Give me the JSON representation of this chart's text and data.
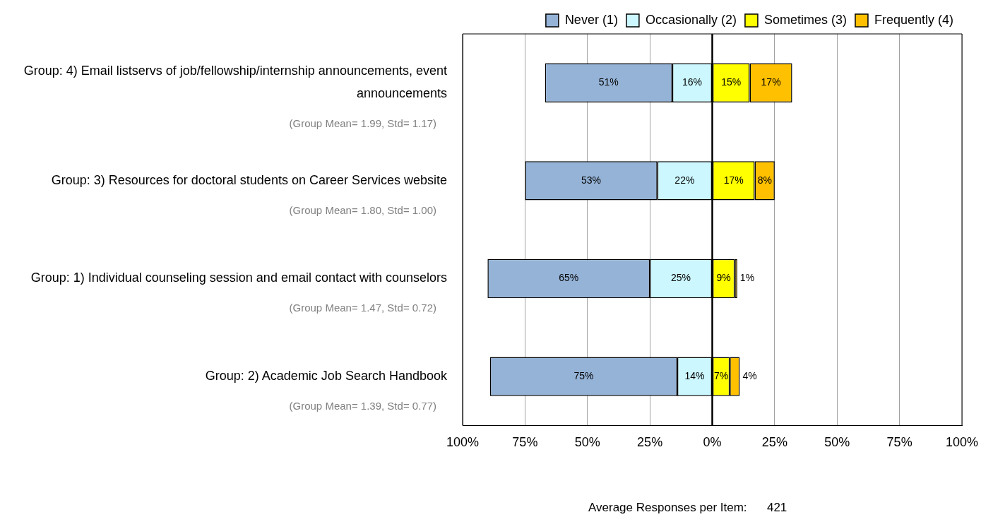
{
  "chart_data": {
    "type": "bar",
    "orientation": "horizontal",
    "categories": [
      "Group: 4) Email listservs of job/fellowship/internship announcements, event announcements",
      "Group: 3) Resources for doctoral students on Career Services website",
      "Group: 1) Individual counseling session and email contact with counselors",
      "Group: 2) Academic Job Search Handbook"
    ],
    "series": [
      {
        "name": "Never (1)",
        "color": "#95b3d7",
        "base": [
          -67,
          -75,
          -90,
          -89
        ],
        "values": [
          51,
          53,
          65,
          75
        ],
        "value_labels": [
          "51%",
          "53%",
          "65%",
          "75%"
        ]
      },
      {
        "name": "Occasionally (2)",
        "color": "#ccf7ff",
        "base": [
          -16,
          -22,
          -25,
          -14
        ],
        "values": [
          16,
          22,
          25,
          14
        ],
        "value_labels": [
          "16%",
          "22%",
          "25%",
          "14%"
        ]
      },
      {
        "name": "Sometimes (3)",
        "color": "#ffff00",
        "base": [
          0,
          0,
          0,
          0
        ],
        "values": [
          15,
          17,
          9,
          7
        ],
        "value_labels": [
          "15%",
          "17%",
          "9%",
          "7%"
        ]
      },
      {
        "name": "Frequently (4)",
        "color": "#ffc000",
        "base": [
          15,
          17,
          9,
          7
        ],
        "values": [
          17,
          8,
          1,
          4
        ],
        "value_labels": [
          "17%",
          "8%",
          "1%",
          "4%"
        ]
      }
    ],
    "xlim": [
      -100,
      100
    ],
    "xticks": [
      {
        "value": -100,
        "label": "100%"
      },
      {
        "value": -75,
        "label": "75%"
      },
      {
        "value": -50,
        "label": "50%"
      },
      {
        "value": -25,
        "label": "25%"
      },
      {
        "value": 0,
        "label": "0%"
      },
      {
        "value": 25,
        "label": "25%"
      },
      {
        "value": 50,
        "label": "50%"
      },
      {
        "value": 75,
        "label": "75%"
      },
      {
        "value": 100,
        "label": "100%"
      }
    ],
    "ref_lines": [
      {
        "axis": "x",
        "value": 0,
        "color": "#000000"
      }
    ],
    "annotations": [
      "(Group Mean= 1.99, Std= 1.17)",
      "(Group Mean= 1.80, Std= 1.00)",
      "(Group Mean= 1.47, Std= 0.72)",
      "(Group Mean= 1.39, Std= 0.77)",
      "Average Responses per Item:      421"
    ],
    "grid": "x",
    "legend": "top right"
  }
}
